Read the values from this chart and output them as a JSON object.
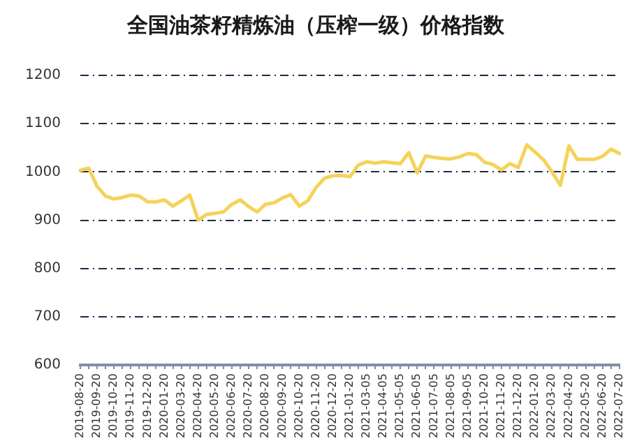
{
  "chart_data": {
    "type": "line",
    "title": "全国油茶籽精炼油（压榨一级）价格指数",
    "categories": [
      "2019-08-20",
      null,
      "2019-09-20",
      null,
      "2019-10-20",
      null,
      "2019-11-20",
      null,
      "2019-12-20",
      null,
      "2020-01-20",
      null,
      "2020-03-20",
      null,
      "2020-04-20",
      null,
      "2020-05-20",
      null,
      "2020-06-20",
      null,
      "2020-07-20",
      null,
      "2020-08-20",
      null,
      "2020-09-20",
      null,
      "2020-10-20",
      null,
      "2020-11-20",
      null,
      "2020-12-20",
      null,
      "2021-01-20",
      null,
      "2021-03-05",
      null,
      "2021-04-05",
      null,
      "2021-05-05",
      null,
      "2021-06-05",
      null,
      "2021-07-05",
      null,
      "2021-08-05",
      null,
      "2021-09-05",
      null,
      "2021-10-20",
      null,
      "2021-11-20",
      null,
      "2021-12-20",
      null,
      "2022-01-20",
      null,
      "2022-03-20",
      null,
      "2022-04-20",
      null,
      "2022-05-20",
      null,
      "2022-06-20",
      null,
      "2022-07-20"
    ],
    "series": [
      {
        "color": "#f5d25a",
        "values": [
          1003,
          1008,
          970,
          950,
          944,
          947,
          952,
          950,
          938,
          938,
          942,
          929,
          940,
          952,
          900,
          912,
          914,
          917,
          933,
          942,
          928,
          917,
          933,
          936,
          946,
          953,
          929,
          940,
          968,
          987,
          992,
          993,
          990,
          1014,
          1021,
          1018,
          1021,
          1019,
          1017,
          1040,
          998,
          1033,
          1030,
          1028,
          1027,
          1031,
          1038,
          1036,
          1020,
          1015,
          1004,
          1017,
          1009,
          1056,
          1041,
          1025,
          1000,
          972,
          1054,
          1026,
          1026,
          1026,
          1032,
          1047,
          1038
        ]
      }
    ],
    "ylim": [
      600,
      1200
    ],
    "yticks": [
      600,
      700,
      800,
      900,
      1000,
      1100,
      1200
    ],
    "grid": "y",
    "marker": "none",
    "line_style": "solid"
  }
}
